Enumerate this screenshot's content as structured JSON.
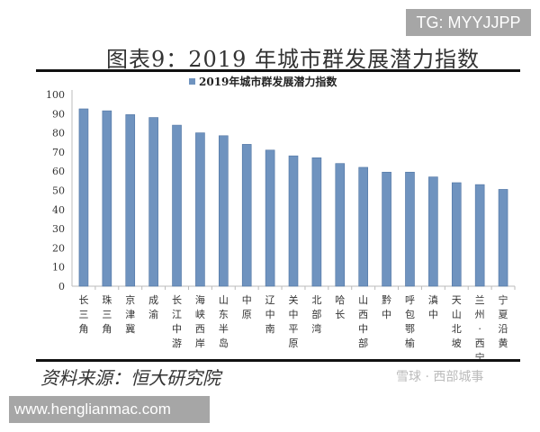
{
  "overlay": {
    "tg": "TG: MYYJJPP",
    "url": "www.henglianmac.com",
    "watermark": "雪球 · 西部城事"
  },
  "figure": {
    "title": "图表9：2019 年城市群发展潜力指数",
    "source": "资料来源：恒大研究院"
  },
  "chart_data": {
    "type": "bar",
    "title": "",
    "legend": {
      "entries": [
        "2019年城市群发展潜力指数"
      ],
      "placement": "top"
    },
    "categories": [
      "长三角",
      "珠三角",
      "京津冀",
      "成渝",
      "长江中游",
      "海峡西岸",
      "山东半岛",
      "中原",
      "辽中南",
      "关中平原",
      "北部湾",
      "哈长",
      "山西中部",
      "黔中",
      "呼包鄂榆",
      "滇中",
      "天山北坡",
      "兰州-西宁",
      "宁夏沿黄"
    ],
    "series": [
      {
        "name": "2019年城市群发展潜力指数",
        "values": [
          92.5,
          91.5,
          89.5,
          88,
          84,
          80,
          78.5,
          74,
          71,
          68,
          67,
          64,
          62,
          59.5,
          59.5,
          57,
          54,
          53,
          50.5
        ]
      }
    ],
    "ylim": [
      0,
      100
    ],
    "yticks": [
      0,
      10,
      20,
      30,
      40,
      50,
      60,
      70,
      80,
      90,
      100
    ],
    "grid": false,
    "color": "#6f93bf"
  }
}
